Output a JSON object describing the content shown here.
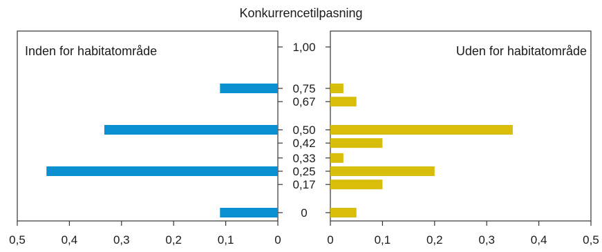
{
  "chart_data": {
    "type": "bar",
    "title": "Konkurrencetilpasning",
    "orientation": "horizontal-back-to-back",
    "categories": [
      "0",
      "0,17",
      "0,25",
      "0,33",
      "0,42",
      "0,50",
      "0,67",
      "0,75",
      "1,00"
    ],
    "category_values": [
      0,
      0.17,
      0.25,
      0.33,
      0.42,
      0.5,
      0.67,
      0.75,
      1.0
    ],
    "series": [
      {
        "name": "Inden for habitatområde",
        "color": "#0a8fd0",
        "values": [
          0.111,
          0,
          0.444,
          0,
          0,
          0.333,
          0,
          0.111,
          0
        ]
      },
      {
        "name": "Uden for habitatområde",
        "color": "#d9bd0b",
        "values": [
          0.05,
          0.1,
          0.2,
          0.025,
          0.1,
          0.35,
          0.05,
          0.025,
          0
        ]
      }
    ],
    "xlim": [
      0,
      0.5
    ],
    "x_ticks": [
      "0",
      "0,1",
      "0,2",
      "0,3",
      "0,4",
      "0,5"
    ],
    "left_x_ticks": [
      "0,5",
      "0,4",
      "0,3",
      "0,2",
      "0,1",
      "0"
    ],
    "grid": false
  }
}
